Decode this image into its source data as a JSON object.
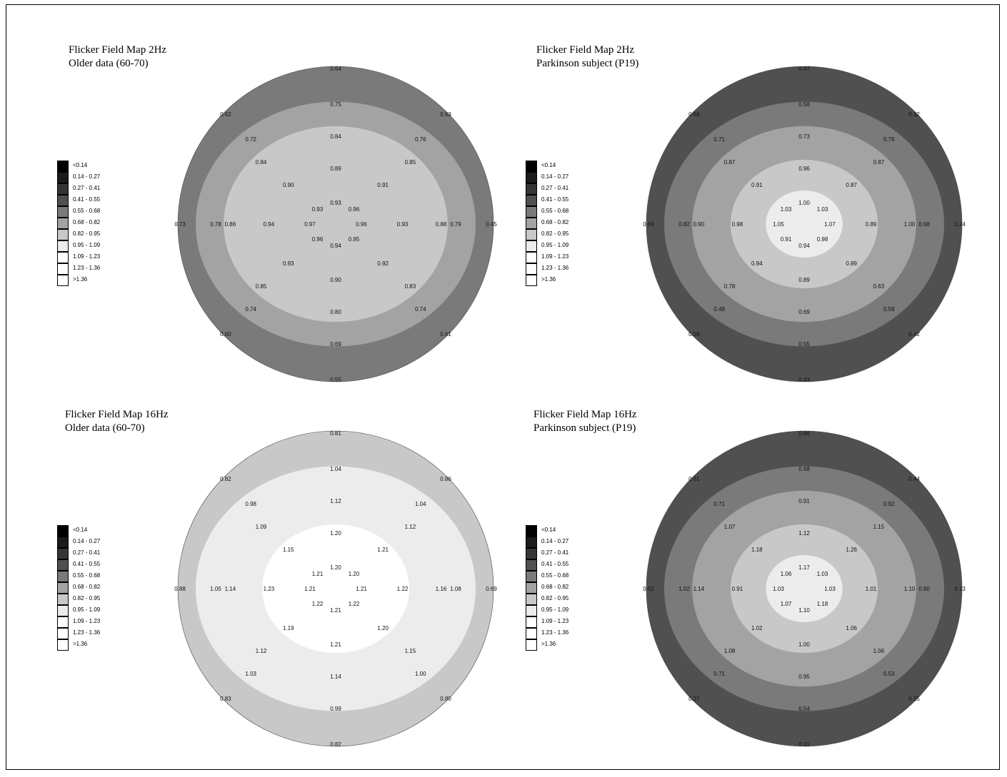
{
  "legend": [
    {
      "label": "<0.14",
      "color": "#000000"
    },
    {
      "label": "0.14 - 0.27",
      "color": "#1b1b1b"
    },
    {
      "label": "0.27 - 0.41",
      "color": "#353535"
    },
    {
      "label": "0.41 - 0.55",
      "color": "#505050"
    },
    {
      "label": "0.55 - 0.68",
      "color": "#7a7a7a"
    },
    {
      "label": "0.68 - 0.82",
      "color": "#a3a3a3"
    },
    {
      "label": "0.82 - 0.95",
      "color": "#c8c8c8"
    },
    {
      "label": "0.95 - 1.09",
      "color": "#ececec"
    },
    {
      "label": "1.09 - 1.23",
      "color": "#ffffff"
    },
    {
      "label": "1.23 - 1.36",
      "color": "#ffffff"
    },
    {
      "label": ">1.36",
      "color": "#ffffff"
    }
  ],
  "chart_data": [
    {
      "type": "heatmap",
      "title": "Flicker Field Map 2Hz",
      "subtitle": "Older data (60-70)",
      "rings": [
        {
          "color": "#7a7a7a",
          "values": [
            "0.64",
            "0.62",
            "0.63",
            "0.73",
            "0.45",
            "0.60",
            "0.61",
            "0.55"
          ]
        },
        {
          "color": "#a3a3a3",
          "values": [
            "0.75",
            "0.72",
            "0.76",
            "0.78",
            "0.79",
            "0.74",
            "0.74",
            "0.69"
          ]
        },
        {
          "color": "#c8c8c8",
          "values": [
            "0.84",
            "0.84",
            "0.85",
            "0.86",
            "0.88",
            "0.85",
            "0.83",
            "0.80"
          ]
        },
        {
          "color": "#c8c8c8",
          "values": [
            "0.89",
            "0.90",
            "0.91",
            "0.94",
            "0.93",
            "0.93",
            "0.92",
            "0.90"
          ]
        },
        {
          "color": "#c8c8c8",
          "values": [
            "0.93",
            "0.93",
            "0.96",
            "0.97",
            "0.96",
            "0.96",
            "0.95",
            "0.94"
          ]
        }
      ]
    },
    {
      "type": "heatmap",
      "title": "Flicker Field Map 2Hz",
      "subtitle": "Parkinson subject (P19)",
      "rings": [
        {
          "color": "#505050",
          "values": [
            "0.47",
            "0.68",
            "0.32",
            "0.69",
            "0.24",
            "0.58",
            "0.42",
            "0.43"
          ]
        },
        {
          "color": "#7a7a7a",
          "values": [
            "0.58",
            "0.71",
            "0.76",
            "0.82",
            "0.68",
            "0.48",
            "0.59",
            "0.55"
          ]
        },
        {
          "color": "#a3a3a3",
          "values": [
            "0.73",
            "0.87",
            "0.87",
            "0.90",
            "1.00",
            "0.78",
            "0.63",
            "0.69"
          ]
        },
        {
          "color": "#c8c8c8",
          "values": [
            "0.96",
            "0.91",
            "0.87",
            "0.98",
            "0.89",
            "0.94",
            "0.89",
            "0.89"
          ]
        },
        {
          "color": "#ececec",
          "values": [
            "1.00",
            "1.03",
            "1.03",
            "1.05",
            "1.07",
            "0.91",
            "0.98",
            "0.94"
          ]
        }
      ]
    },
    {
      "type": "heatmap",
      "title": "Flicker Field Map 16Hz",
      "subtitle": "Older data (60-70)",
      "rings": [
        {
          "color": "#c8c8c8",
          "values": [
            "0.81",
            "0.82",
            "0.86",
            "0.88",
            "0.69",
            "0.83",
            "0.80",
            "0.82"
          ]
        },
        {
          "color": "#ececec",
          "values": [
            "1.04",
            "0.98",
            "1.04",
            "1.05",
            "1.08",
            "1.03",
            "1.00",
            "0.99"
          ]
        },
        {
          "color": "#ececec",
          "values": [
            "1.12",
            "1.09",
            "1.12",
            "1.14",
            "1.16",
            "1.12",
            "1.15",
            "1.14"
          ]
        },
        {
          "color": "#ffffff",
          "values": [
            "1.20",
            "1.15",
            "1.21",
            "1.23",
            "1.22",
            "1.19",
            "1.20",
            "1.21"
          ]
        },
        {
          "color": "#ffffff",
          "values": [
            "1.20",
            "1.21",
            "1.20",
            "1.21",
            "1.21",
            "1.22",
            "1.22",
            "1.21"
          ]
        }
      ]
    },
    {
      "type": "heatmap",
      "title": "Flicker Field Map 16Hz",
      "subtitle": "Parkinson subject (P19)",
      "rings": [
        {
          "color": "#505050",
          "values": [
            "0.66",
            "0.61",
            "0.44",
            "0.52",
            "0.13",
            "0.27",
            "0.25",
            "0.11"
          ]
        },
        {
          "color": "#7a7a7a",
          "values": [
            "0.68",
            "0.71",
            "0.92",
            "1.02",
            "0.90",
            "0.71",
            "0.53",
            "0.54"
          ]
        },
        {
          "color": "#a3a3a3",
          "values": [
            "0.91",
            "1.07",
            "1.15",
            "1.14",
            "1.10",
            "1.08",
            "1.06",
            "0.95"
          ]
        },
        {
          "color": "#c8c8c8",
          "values": [
            "1.12",
            "1.18",
            "1.26",
            "0.91",
            "1.01",
            "1.02",
            "1.06",
            "1.00"
          ]
        },
        {
          "color": "#ececec",
          "values": [
            "1.17",
            "1.06",
            "1.03",
            "1.03",
            "1.03",
            "1.07",
            "1.18",
            "1.10"
          ]
        }
      ]
    }
  ]
}
